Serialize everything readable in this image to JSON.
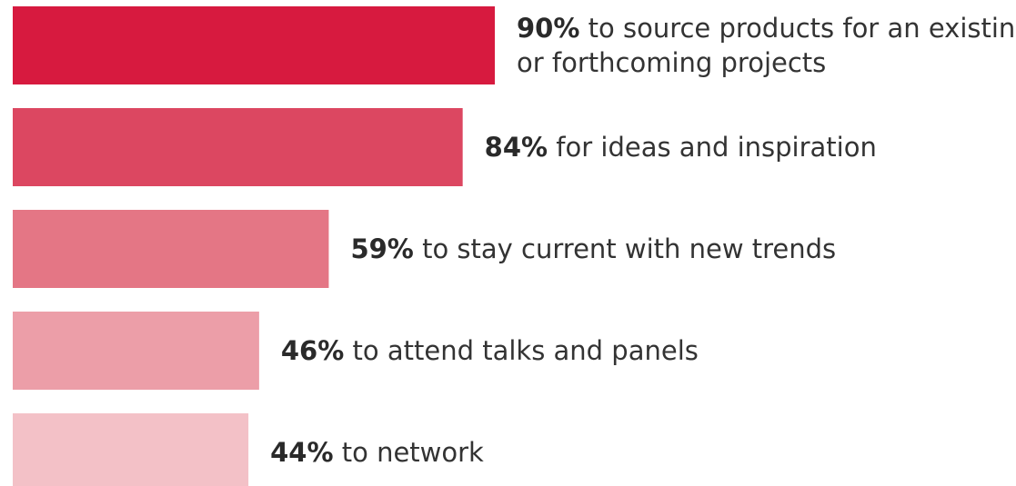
{
  "chart_data": {
    "type": "bar",
    "orientation": "horizontal",
    "title": "",
    "xlabel": "",
    "ylabel": "",
    "xlim": [
      0,
      100
    ],
    "grid": false,
    "legend": "none",
    "bars": [
      {
        "value": 90,
        "value_label": "90%",
        "label_lines": [
          "to source products for an existing",
          "or forthcoming projects"
        ],
        "color": "#d71a3f"
      },
      {
        "value": 84,
        "value_label": "84%",
        "label_lines": [
          "for ideas and inspiration"
        ],
        "color": "#dc4761"
      },
      {
        "value": 59,
        "value_label": "59%",
        "label_lines": [
          "to stay current with new trends"
        ],
        "color": "#e47685"
      },
      {
        "value": 46,
        "value_label": "46%",
        "label_lines": [
          "to attend talks and panels"
        ],
        "color": "#ec9ea8"
      },
      {
        "value": 44,
        "value_label": "44%",
        "label_lines": [
          "to network"
        ],
        "color": "#f3c1c7"
      }
    ]
  }
}
